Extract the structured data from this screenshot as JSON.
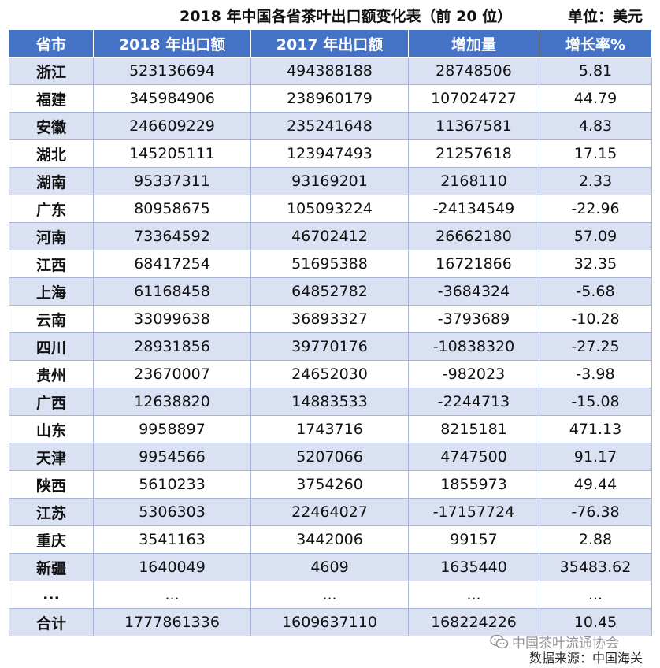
{
  "header": {
    "title": "2018 年中国各省茶叶出口额变化表（前 20 位）",
    "unit": "单位：美元"
  },
  "table": {
    "columns": [
      "省市",
      "2018 年出口额",
      "2017 年出口额",
      "增加量",
      "增长率%"
    ],
    "rows": [
      [
        "浙江",
        "523136694",
        "494388188",
        "28748506",
        "5.81"
      ],
      [
        "福建",
        "345984906",
        "238960179",
        "107024727",
        "44.79"
      ],
      [
        "安徽",
        "246609229",
        "235241648",
        "11367581",
        "4.83"
      ],
      [
        "湖北",
        "145205111",
        "123947493",
        "21257618",
        "17.15"
      ],
      [
        "湖南",
        "95337311",
        "93169201",
        "2168110",
        "2.33"
      ],
      [
        "广东",
        "80958675",
        "105093224",
        "-24134549",
        "-22.96"
      ],
      [
        "河南",
        "73364592",
        "46702412",
        "26662180",
        "57.09"
      ],
      [
        "江西",
        "68417254",
        "51695388",
        "16721866",
        "32.35"
      ],
      [
        "上海",
        "61168458",
        "64852782",
        "-3684324",
        "-5.68"
      ],
      [
        "云南",
        "33099638",
        "36893327",
        "-3793689",
        "-10.28"
      ],
      [
        "四川",
        "28931856",
        "39770176",
        "-10838320",
        "-27.25"
      ],
      [
        "贵州",
        "23670007",
        "24652030",
        "-982023",
        "-3.98"
      ],
      [
        "广西",
        "12638820",
        "14883533",
        "-2244713",
        "-15.08"
      ],
      [
        "山东",
        "9958897",
        "1743716",
        "8215181",
        "471.13"
      ],
      [
        "天津",
        "9954566",
        "5207066",
        "4747500",
        "91.17"
      ],
      [
        "陕西",
        "5610233",
        "3754260",
        "1855973",
        "49.44"
      ],
      [
        "江苏",
        "5306303",
        "22464027",
        "-17157724",
        "-76.38"
      ],
      [
        "重庆",
        "3541163",
        "3442006",
        "99157",
        "2.88"
      ],
      [
        "新疆",
        "1640049",
        "4609",
        "1635440",
        "35483.62"
      ],
      [
        "...",
        "...",
        "...",
        "...",
        "..."
      ],
      [
        "合计",
        "1777861336",
        "1609637110",
        "168224226",
        "10.45"
      ]
    ]
  },
  "footer": {
    "watermark_text": "中国茶叶流通协会",
    "watermark_icon": "wechat-icon",
    "source": "数据来源：中国海关"
  },
  "colors": {
    "header_bg": "#4472c4",
    "band_bg": "#d9e1f2",
    "border": "#a9b6d6"
  }
}
